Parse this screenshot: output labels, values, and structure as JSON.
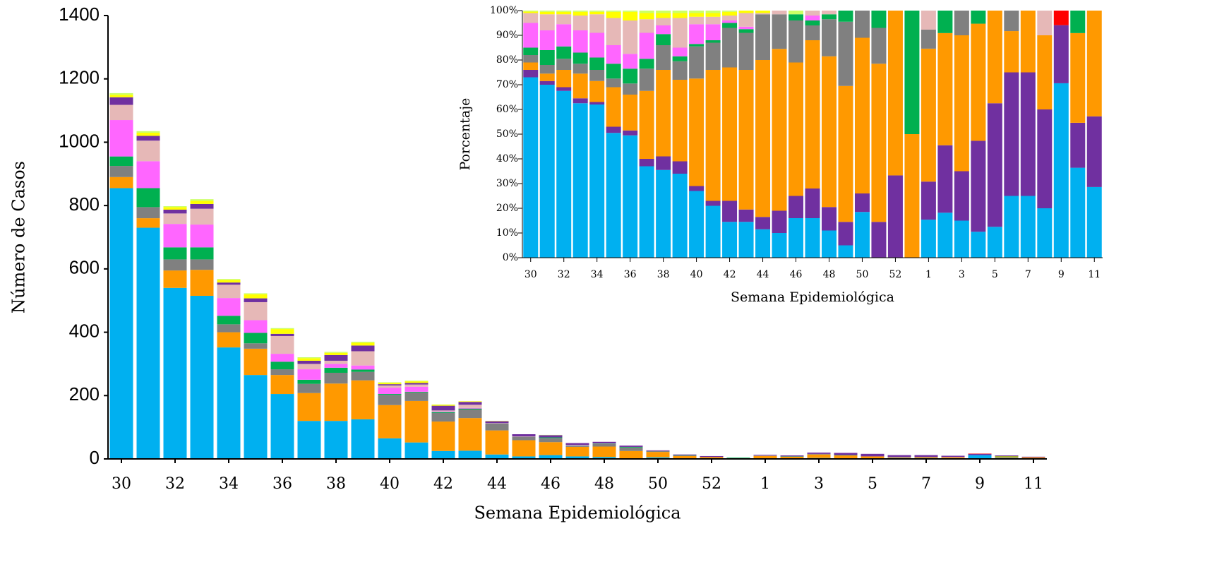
{
  "chart_data": [
    {
      "type": "bar",
      "stacked": true,
      "x_label": "Semana Epidemiológica",
      "y_label": "Número de Casos",
      "categories": [
        "30",
        null,
        "32",
        null,
        "34",
        null,
        "36",
        null,
        "38",
        null,
        "40",
        null,
        "42",
        null,
        "44",
        null,
        "46",
        null,
        "48",
        null,
        "50",
        null,
        "52",
        null,
        "1",
        null,
        "3",
        null,
        "5",
        null,
        "7",
        null,
        "9",
        null,
        "11"
      ],
      "ylim": [
        0,
        1400
      ],
      "yticks": [
        0,
        200,
        400,
        600,
        800,
        1000,
        1200,
        1400
      ],
      "series": [
        {
          "color": "#00b0f0",
          "values": [
            855,
            730,
            540,
            515,
            352,
            265,
            205,
            120,
            120,
            125,
            65,
            52,
            25,
            26,
            14,
            8,
            12,
            8,
            6,
            2,
            5,
            0,
            0,
            0,
            2,
            2,
            3,
            2,
            2,
            3,
            3,
            2,
            12,
            4,
            2
          ]
        },
        {
          "color": "#ff9900",
          "values": [
            35,
            30,
            55,
            82,
            48,
            83,
            60,
            88,
            118,
            123,
            105,
            131,
            93,
            103,
            76,
            51,
            41,
            30,
            33,
            23,
            17,
            9,
            6,
            2,
            7,
            5,
            11,
            9,
            6,
            2,
            3,
            3,
            0,
            4,
            3
          ]
        },
        {
          "color": "#808080",
          "values": [
            35,
            35,
            35,
            33,
            25,
            17,
            18,
            29,
            34,
            27,
            32,
            27,
            27,
            27,
            22,
            11,
            13,
            3,
            8,
            11,
            3,
            2,
            0,
            0,
            1,
            0,
            2,
            0,
            0,
            1,
            0,
            0,
            0,
            0,
            0
          ]
        },
        {
          "color": "#00b050",
          "values": [
            30,
            60,
            38,
            38,
            27,
            33,
            24,
            13,
            16,
            7,
            3,
            2,
            3,
            3,
            0,
            0,
            2,
            1,
            1,
            2,
            0,
            1,
            0,
            2,
            0,
            1,
            0,
            1,
            0,
            0,
            0,
            0,
            0,
            1,
            0
          ]
        },
        {
          "color": "#ff66ff",
          "values": [
            115,
            85,
            74,
            72,
            56,
            40,
            25,
            33,
            12,
            13,
            20,
            16,
            2,
            2,
            0,
            0,
            0,
            1,
            0,
            0,
            0,
            0,
            0,
            0,
            0,
            0,
            0,
            0,
            0,
            0,
            0,
            0,
            0,
            0,
            0
          ]
        },
        {
          "color": "#e6b8b7",
          "values": [
            48,
            65,
            33,
            50,
            42,
            57,
            56,
            17,
            10,
            45,
            7,
            7,
            3,
            10,
            1,
            1,
            0,
            1,
            1,
            0,
            0,
            0,
            0,
            0,
            1,
            0,
            0,
            0,
            0,
            0,
            0,
            1,
            0,
            0,
            0
          ]
        },
        {
          "color": "#7030a0",
          "values": [
            24,
            15,
            12,
            15,
            7,
            12,
            7,
            10,
            18,
            18,
            4,
            5,
            15,
            9,
            6,
            7,
            7,
            6,
            5,
            4,
            2,
            2,
            3,
            0,
            2,
            3,
            4,
            7,
            8,
            6,
            6,
            4,
            4,
            2,
            2
          ]
        },
        {
          "color": "#ffff00",
          "values": [
            8,
            10,
            8,
            10,
            8,
            13,
            15,
            8,
            7,
            9,
            4,
            5,
            3,
            2,
            1,
            0,
            0,
            0,
            0,
            0,
            0,
            0,
            0,
            0,
            0,
            0,
            0,
            0,
            0,
            0,
            0,
            0,
            0,
            0,
            0
          ]
        },
        {
          "color": "#ccff66",
          "values": [
            5,
            5,
            3,
            5,
            3,
            3,
            3,
            3,
            3,
            3,
            2,
            2,
            1,
            0,
            0,
            0,
            1,
            0,
            0,
            0,
            0,
            0,
            0,
            0,
            0,
            0,
            0,
            0,
            0,
            0,
            0,
            0,
            0,
            0,
            0
          ]
        },
        {
          "color": "#ff0000",
          "values": [
            0,
            0,
            0,
            0,
            0,
            0,
            0,
            0,
            0,
            0,
            0,
            0,
            0,
            0,
            0,
            0,
            0,
            0,
            0,
            0,
            0,
            0,
            0,
            0,
            0,
            0,
            0,
            0,
            0,
            0,
            0,
            0,
            1,
            0,
            0
          ]
        }
      ]
    },
    {
      "type": "bar",
      "stacked": true,
      "x_label": "Semana Epidemiológica",
      "y_label": "Porcentaje",
      "categories": [
        "30",
        null,
        "32",
        null,
        "34",
        null,
        "36",
        null,
        "38",
        null,
        "40",
        null,
        "42",
        null,
        "44",
        null,
        "46",
        null,
        "48",
        null,
        "50",
        null,
        "52",
        null,
        "1",
        null,
        "3",
        null,
        "5",
        null,
        "7",
        null,
        "9",
        null,
        "11"
      ],
      "ylim": [
        0,
        100
      ],
      "yticks": [
        {
          "value": 0,
          "label": "0%"
        },
        {
          "value": 10,
          "label": "10%"
        },
        {
          "value": 20,
          "label": "20%"
        },
        {
          "value": 30,
          "label": "30%"
        },
        {
          "value": 40,
          "label": "40%"
        },
        {
          "value": 50,
          "label": "50%"
        },
        {
          "value": 60,
          "label": "60%"
        },
        {
          "value": 70,
          "label": "70%"
        },
        {
          "value": 80,
          "label": "80%"
        },
        {
          "value": 90,
          "label": "90%"
        },
        {
          "value": 100,
          "label": "100%"
        }
      ],
      "series": [
        {
          "color": "#00b0f0",
          "values": [
            73,
            70,
            67.5,
            62.5,
            62,
            50.5,
            49.5,
            37,
            35.5,
            34,
            27,
            21,
            14.5,
            14.5,
            11.5,
            10,
            16,
            16,
            11,
            5,
            18.5,
            0,
            0,
            0,
            15.4,
            18.2,
            15,
            10.5,
            12.5,
            25,
            25,
            20,
            70.6,
            36.4,
            28.6
          ]
        },
        {
          "color": "#7030a0",
          "values": [
            3,
            1.5,
            1.5,
            2,
            1,
            2.5,
            2,
            3,
            5.5,
            5,
            2,
            2,
            8.5,
            5,
            5,
            9,
            9,
            12,
            9.5,
            9.5,
            7.5,
            14.5,
            33.3,
            0,
            15.4,
            27.3,
            20,
            36.8,
            50,
            50,
            50,
            40,
            23.5,
            18.2,
            28.6
          ]
        },
        {
          "color": "#ff9900",
          "values": [
            3,
            3,
            7,
            10,
            8.5,
            16,
            14.5,
            27.5,
            35,
            33,
            43.5,
            53,
            54,
            56.5,
            63.5,
            65.5,
            54,
            60,
            61,
            55,
            63,
            64,
            66.7,
            50,
            53.8,
            45.4,
            55,
            47.4,
            37.5,
            16.7,
            25,
            30,
            0,
            36.3,
            42.8
          ]
        },
        {
          "color": "#808080",
          "values": [
            3,
            3.5,
            4.5,
            4,
            4.5,
            3.5,
            4.5,
            9,
            10,
            7.5,
            13,
            11,
            16,
            15,
            18.5,
            14,
            17,
            6,
            15,
            26,
            11,
            14.5,
            0,
            0,
            7.7,
            0,
            10,
            0,
            0,
            8.3,
            0,
            0,
            0,
            0,
            0
          ]
        },
        {
          "color": "#00b050",
          "values": [
            3,
            6,
            5,
            4.5,
            5,
            6,
            6,
            4,
            4.5,
            2,
            1,
            1,
            2,
            1.5,
            0,
            0,
            2.5,
            2,
            2,
            4.5,
            0,
            7,
            0,
            50,
            0,
            9.1,
            0,
            5.3,
            0,
            0,
            0,
            0,
            0,
            9.1,
            0
          ]
        },
        {
          "color": "#ff66ff",
          "values": [
            10,
            8,
            9,
            9,
            10,
            7.5,
            6,
            10.5,
            3.5,
            3.5,
            8,
            6.5,
            1,
            1,
            0,
            0,
            0,
            2,
            0,
            0,
            0,
            0,
            0,
            0,
            0,
            0,
            0,
            0,
            0,
            0,
            0,
            0,
            0,
            0,
            0
          ]
        },
        {
          "color": "#e6b8b7",
          "values": [
            4,
            6.5,
            4,
            6,
            7.5,
            11,
            13.5,
            5.5,
            3,
            12,
            3,
            3,
            2,
            5.5,
            0.5,
            1.5,
            0,
            2,
            1.5,
            0,
            0,
            0,
            0,
            0,
            7.7,
            0,
            0,
            0,
            0,
            0,
            0,
            10,
            0,
            0,
            0
          ]
        },
        {
          "color": "#ffff00",
          "values": [
            0.6,
            1,
            1,
            1.5,
            1,
            2.5,
            3.5,
            2.5,
            2,
            2,
            1.5,
            1.5,
            1.5,
            1,
            1,
            0,
            0,
            0,
            0,
            0,
            0,
            0,
            0,
            0,
            0,
            0,
            0,
            0,
            0,
            0,
            0,
            0,
            0,
            0,
            0
          ]
        },
        {
          "color": "#ccff66",
          "values": [
            0.4,
            0.5,
            0.5,
            0.5,
            0.5,
            0.5,
            0.5,
            1,
            1,
            1,
            1,
            1,
            0.5,
            0,
            0,
            0,
            1.5,
            0,
            0,
            0,
            0,
            0,
            0,
            0,
            0,
            0,
            0,
            0,
            0,
            0,
            0,
            0,
            0,
            0,
            0
          ]
        },
        {
          "color": "#ff0000",
          "values": [
            0,
            0,
            0,
            0,
            0,
            0,
            0,
            0,
            0,
            0,
            0,
            0,
            0,
            0,
            0,
            0,
            0,
            0,
            0,
            0,
            0,
            0,
            0,
            0,
            0,
            0,
            0,
            0,
            0,
            0,
            0,
            0,
            5.9,
            0,
            0
          ]
        }
      ]
    }
  ]
}
